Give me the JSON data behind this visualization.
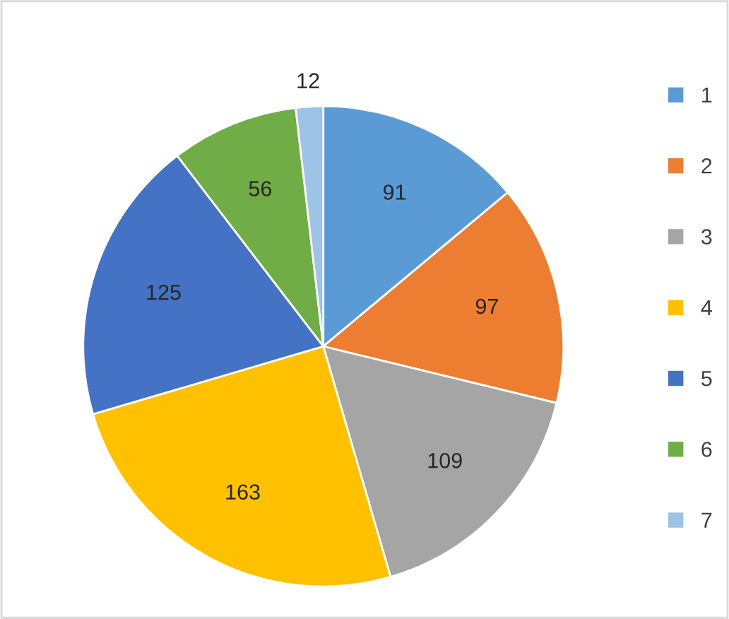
{
  "chart_data": {
    "type": "pie",
    "categories": [
      "1",
      "2",
      "3",
      "4",
      "5",
      "6",
      "7"
    ],
    "values": [
      91,
      97,
      109,
      163,
      125,
      56,
      12
    ],
    "colors": [
      "#5b9bd5",
      "#ed7d31",
      "#a5a5a5",
      "#ffc000",
      "#4472c4",
      "#70ad47",
      "#9dc3e6"
    ],
    "data_labels": true,
    "legend": "right"
  }
}
